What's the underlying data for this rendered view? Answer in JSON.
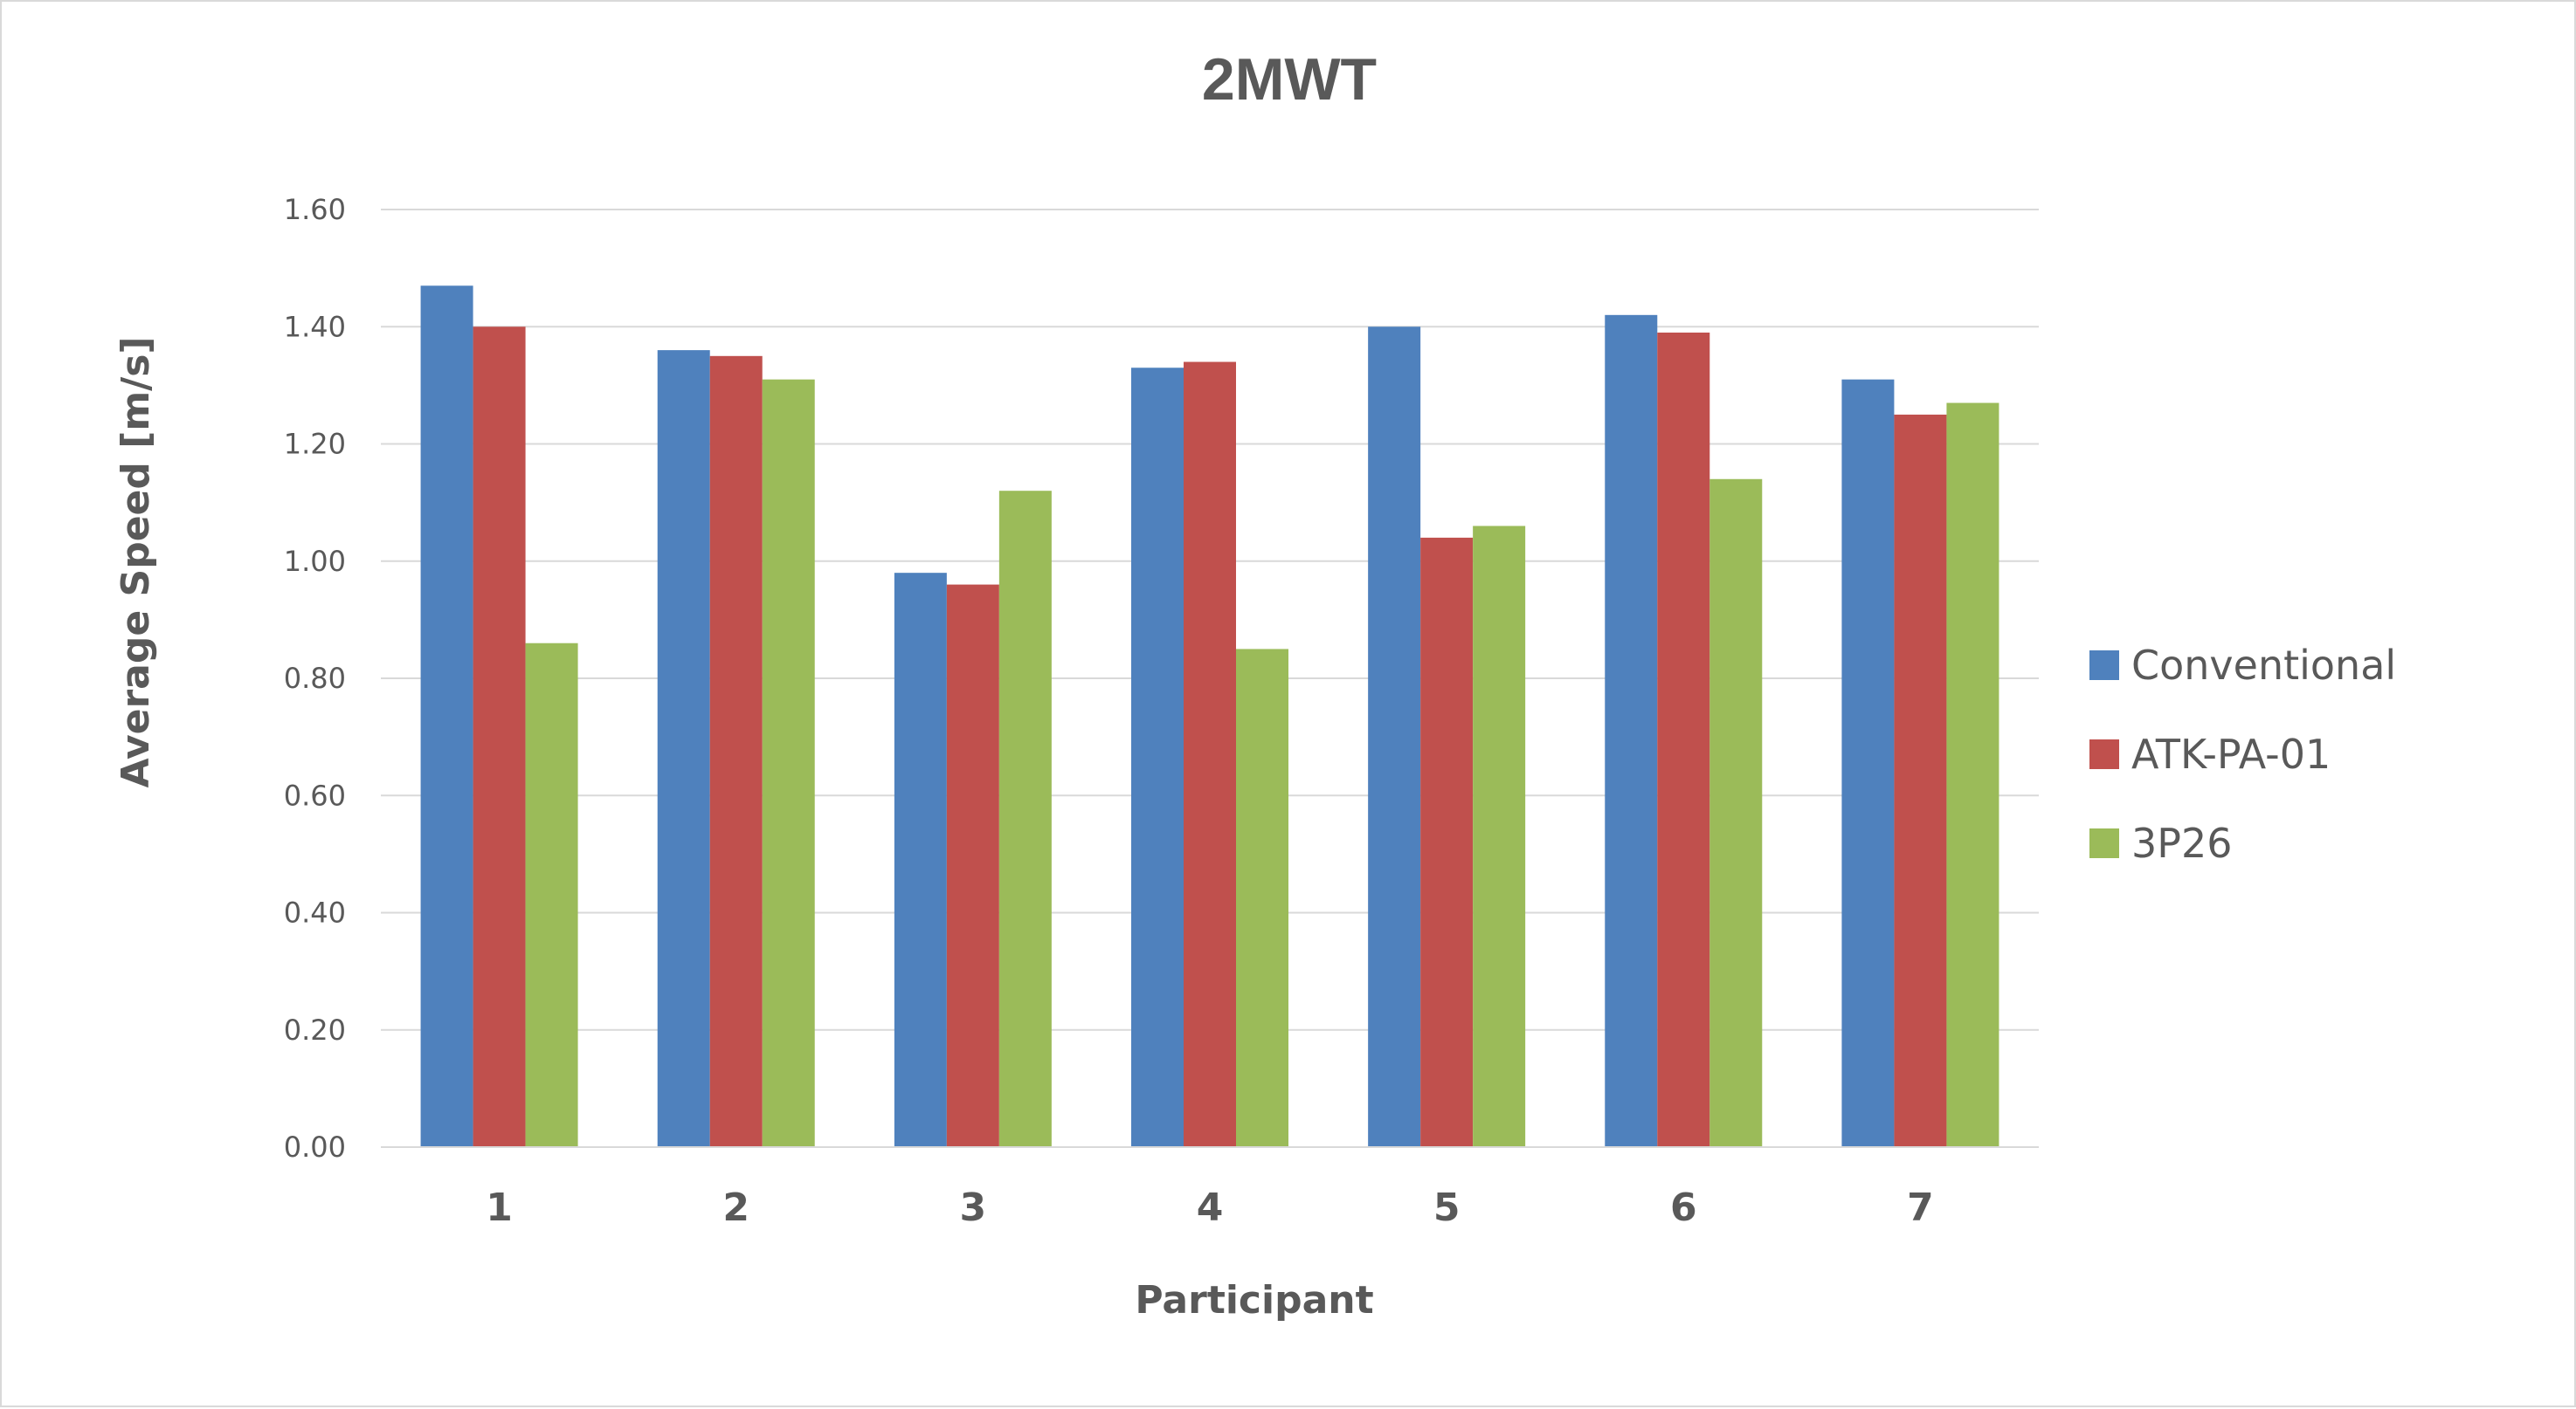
{
  "chart_data": {
    "type": "bar",
    "title": "2MWT",
    "xlabel": "Participant",
    "ylabel": "Average Speed [m/s]",
    "categories": [
      "1",
      "2",
      "3",
      "4",
      "5",
      "6",
      "7"
    ],
    "ylim": [
      0,
      1.6
    ],
    "yticks": [
      "0.00",
      "0.20",
      "0.40",
      "0.60",
      "0.80",
      "1.00",
      "1.20",
      "1.40",
      "1.60"
    ],
    "grid": true,
    "legend_position": "right",
    "series": [
      {
        "name": "Conventional",
        "color": "#4f81bd",
        "values": [
          1.47,
          1.36,
          0.98,
          1.33,
          1.4,
          1.42,
          1.31
        ]
      },
      {
        "name": "ATK-PA-01",
        "color": "#c0504d",
        "values": [
          1.4,
          1.35,
          0.96,
          1.34,
          1.04,
          1.39,
          1.25
        ]
      },
      {
        "name": "3P26",
        "color": "#9bbb59",
        "values": [
          0.86,
          1.31,
          1.12,
          0.85,
          1.06,
          1.14,
          1.27
        ]
      }
    ]
  }
}
